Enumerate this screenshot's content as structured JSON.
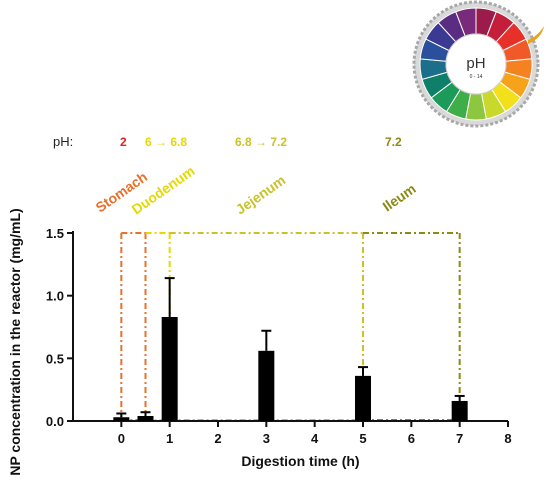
{
  "chart_data": {
    "type": "bar",
    "xlabel": "Digestion time (h)",
    "ylabel": "NP concentration in the reactor (mg/mL)",
    "xlim": [
      -1,
      8
    ],
    "ylim": [
      0,
      1.5
    ],
    "xticks": [
      0,
      1,
      2,
      3,
      4,
      5,
      6,
      7,
      8
    ],
    "yticks": [
      0.0,
      0.5,
      1.0,
      1.5
    ],
    "xtick_labels": [
      "0",
      "1",
      "2",
      "3",
      "4",
      "5",
      "6",
      "7",
      "8"
    ],
    "ytick_labels": [
      "0.0",
      "0.5",
      "1.0",
      "1.5"
    ],
    "bars": [
      {
        "x": 0,
        "value": 0.03,
        "error": 0.03
      },
      {
        "x": 0.5,
        "value": 0.04,
        "error": 0.03
      },
      {
        "x": 1,
        "value": 0.83,
        "error": 0.31
      },
      {
        "x": 3,
        "value": 0.56,
        "error": 0.16
      },
      {
        "x": 5,
        "value": 0.36,
        "error": 0.07
      },
      {
        "x": 7,
        "value": 0.16,
        "error": 0.04
      }
    ],
    "regions": [
      {
        "label": "Stomach",
        "x_start": 0,
        "x_end": 0.5,
        "color": "#e8702a"
      },
      {
        "label": "Duodenum",
        "x_start": 0.5,
        "x_end": 1,
        "color": "#e6d800"
      },
      {
        "label": "Jejenum",
        "x_start": 1,
        "x_end": 5,
        "color": "#c9c22a"
      },
      {
        "label": "Ileum",
        "x_start": 5,
        "x_end": 7,
        "color": "#8c8a14"
      }
    ],
    "region_top": 1.5,
    "ph_row": {
      "title": "pH:",
      "values": [
        {
          "text": "2",
          "color": "#e02020"
        },
        {
          "text": "6 → 6.8",
          "color": "#e6d800"
        },
        {
          "text": "6.8 → 7.2",
          "color": "#c9c22a"
        },
        {
          "text": "7.2",
          "color": "#8c8a14"
        }
      ]
    },
    "ph_wheel": {
      "label": "pH",
      "range_label": "0 - 14",
      "colors": [
        "#9b1b4a",
        "#c41e3a",
        "#e8302a",
        "#ef5a28",
        "#f58220",
        "#f6a21b",
        "#f2e01a",
        "#c8d92c",
        "#8dc63f",
        "#3fae49",
        "#1c9a5a",
        "#0f7f6a",
        "#1b6f8a",
        "#2a4f9c",
        "#3b3a93",
        "#5a2d82",
        "#7a2a7a"
      ]
    }
  }
}
